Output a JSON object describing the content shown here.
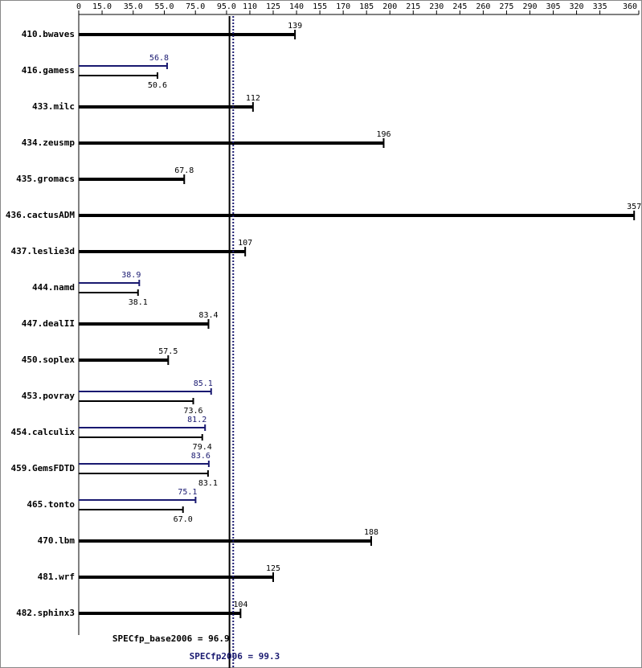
{
  "chart_data": {
    "type": "spec-bar",
    "categories": [
      "410.bwaves",
      "416.gamess",
      "433.milc",
      "434.zeusmp",
      "435.gromacs",
      "436.cactusADM",
      "437.leslie3d",
      "444.namd",
      "447.dealII",
      "450.soplex",
      "453.povray",
      "454.calculix",
      "459.GemsFDTD",
      "465.tonto",
      "470.lbm",
      "481.wrf",
      "482.sphinx3"
    ],
    "series": [
      {
        "color": "#000000",
        "values": [
          139,
          50.6,
          112,
          196,
          67.8,
          357,
          107,
          38.1,
          83.4,
          57.5,
          73.6,
          79.4,
          83.1,
          67.0,
          188,
          125,
          104
        ],
        "value_labels": [
          "139",
          "50.6",
          "112",
          "196",
          "67.8",
          "357",
          "107",
          "38.1",
          "83.4",
          "57.5",
          "73.6",
          "79.4",
          "83.1",
          "67.0",
          "188",
          "125",
          "104"
        ]
      },
      {
        "color": "#191970",
        "values": [
          null,
          56.8,
          null,
          null,
          null,
          null,
          null,
          38.9,
          null,
          null,
          85.1,
          81.2,
          83.6,
          75.1,
          null,
          null,
          null
        ]
      }
    ],
    "xlim": [
      0,
      360
    ],
    "xticks": [
      0,
      {
        "value": 15,
        "label": "15.0"
      },
      {
        "value": 35,
        "label": "35.0"
      },
      {
        "value": 55,
        "label": "55.0"
      },
      {
        "value": 75,
        "label": "75.0"
      },
      {
        "value": 95,
        "label": "95.0"
      },
      110,
      125,
      140,
      155,
      170,
      185,
      200,
      215,
      230,
      245,
      260,
      275,
      290,
      305,
      320,
      335,
      360
    ],
    "reference_lines": [
      {
        "label": "SPECfp_base2006 = 96.9",
        "value": 96.9,
        "color": "#000000"
      },
      {
        "label": "SPECfp2006 = 99.3",
        "value": 99.3,
        "color": "#191970"
      }
    ]
  }
}
